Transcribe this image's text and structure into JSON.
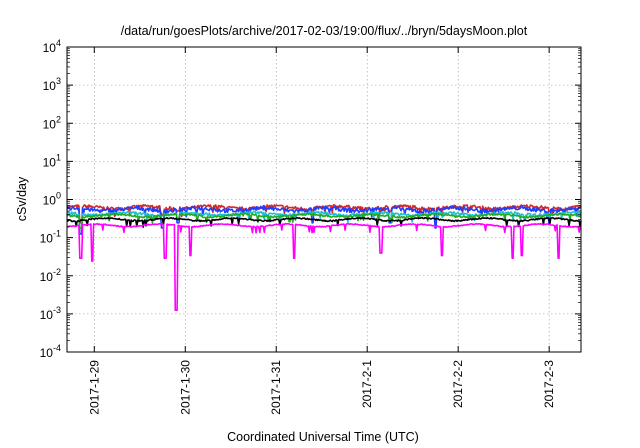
{
  "chart_data": {
    "type": "line",
    "title": "/data/run/goesPlots/archive/2017-02-03/19:00/flux/../bryn/5daysMoon.plot",
    "xlabel": "Coordinated Universal Time (UTC)",
    "ylabel": "cSv/day",
    "yscale": "log",
    "ylim_exponents": [
      -4,
      4
    ],
    "y_tick_labels": [
      {
        "base": "10",
        "exp": "-4"
      },
      {
        "base": "10",
        "exp": "-3"
      },
      {
        "base": "10",
        "exp": "-2"
      },
      {
        "base": "10",
        "exp": "-1"
      },
      {
        "base": "10",
        "exp": "0"
      },
      {
        "base": "10",
        "exp": "1"
      },
      {
        "base": "10",
        "exp": "2"
      },
      {
        "base": "10",
        "exp": "3"
      },
      {
        "base": "10",
        "exp": "4"
      }
    ],
    "x_range_days": [
      0,
      5.65
    ],
    "x_tick_labels": [
      "2017-1-29",
      "2017-1-30",
      "2017-1-31",
      "2017-2-1",
      "2017-2-2",
      "2017-2-3"
    ],
    "grid": true,
    "series": [
      {
        "color": "#d62728",
        "base": 0.62,
        "amp": 0.1,
        "dips": [
          [
            0.15,
            0.35
          ],
          [
            1.05,
            0.45
          ],
          [
            1.22,
            0.5
          ],
          [
            2.7,
            0.5
          ],
          [
            3.55,
            0.5
          ],
          [
            4.05,
            0.45
          ],
          [
            5.3,
            0.5
          ]
        ]
      },
      {
        "color": "#1f3fff",
        "base": 0.55,
        "amp": 0.12,
        "dips": [
          [
            0.15,
            0.25
          ],
          [
            1.05,
            0.3
          ],
          [
            1.22,
            0.35
          ],
          [
            2.7,
            0.35
          ],
          [
            3.55,
            0.35
          ],
          [
            4.05,
            0.3
          ],
          [
            5.3,
            0.35
          ]
        ]
      },
      {
        "color": "#1fbfd0",
        "base": 0.42,
        "amp": 0.08,
        "dips": [
          [
            0.15,
            0.3
          ],
          [
            1.22,
            0.4
          ],
          [
            3.55,
            0.4
          ],
          [
            5.3,
            0.4
          ]
        ]
      },
      {
        "color": "#22aa22",
        "base": 0.38,
        "amp": 0.06,
        "dips": [
          [
            0.15,
            0.3
          ],
          [
            1.22,
            0.4
          ],
          [
            3.55,
            0.4
          ]
        ]
      },
      {
        "color": "#000000",
        "base": 0.3,
        "amp": 0.04,
        "dips": [
          [
            1.22,
            0.5
          ]
        ]
      },
      {
        "color": "#ff00ff",
        "base": 0.21,
        "amp": 0.03,
        "dips": [
          [
            0.15,
            0.12
          ],
          [
            0.28,
            0.11
          ],
          [
            1.08,
            0.12
          ],
          [
            1.2,
            0.025
          ],
          [
            1.36,
            0.13
          ],
          [
            2.5,
            0.12
          ],
          [
            3.45,
            0.14
          ],
          [
            4.12,
            0.13
          ],
          [
            4.9,
            0.12
          ],
          [
            5.0,
            0.13
          ],
          [
            5.4,
            0.12
          ]
        ]
      }
    ]
  }
}
